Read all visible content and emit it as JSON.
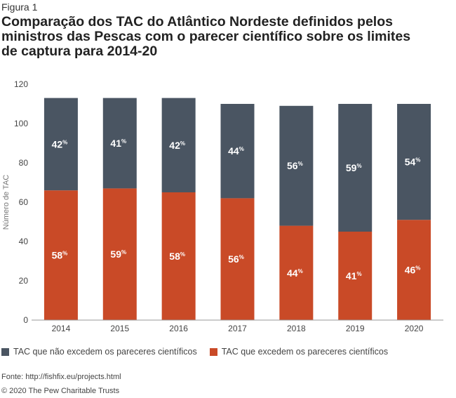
{
  "figure_label": "Figura 1",
  "title_lines": [
    "Comparação dos TAC do Atlântico Nordeste definidos pelos",
    "ministros das Pescas com o parecer científico sobre os limites",
    "de captura para 2014-20"
  ],
  "colors": {
    "not_exceed": "#4a5562",
    "exceed": "#c94a27",
    "axis_text": "#444444",
    "grid": "#d9d9d9"
  },
  "legend": {
    "not_exceed_label": "TAC que não excedem os pareceres científicos",
    "exceed_label": "TAC que excedem os pareceres científicos"
  },
  "footer": {
    "source": "Fonte: http://fishfix.eu/projects.html",
    "copyright": "© 2020 The Pew Charitable Trusts"
  },
  "chart_data": {
    "type": "bar",
    "stacked": true,
    "categories": [
      "2014",
      "2015",
      "2016",
      "2017",
      "2018",
      "2019",
      "2020"
    ],
    "ylabel": "Número de TAC",
    "ylim": [
      0,
      120
    ],
    "yticks": [
      0,
      20,
      40,
      60,
      80,
      100,
      120
    ],
    "grid": false,
    "legend_position": "bottom-left",
    "series": [
      {
        "name": "TAC que excedem os pareceres científicos",
        "values": [
          66,
          67,
          65,
          62,
          48,
          45,
          51
        ],
        "labels": [
          "58%",
          "59%",
          "58%",
          "56%",
          "44%",
          "41%",
          "46%"
        ]
      },
      {
        "name": "TAC que não excedem os pareceres científicos",
        "values": [
          47,
          46,
          48,
          48,
          61,
          65,
          59
        ],
        "labels": [
          "42%",
          "41%",
          "42%",
          "44%",
          "56%",
          "59%",
          "54%"
        ]
      }
    ]
  }
}
